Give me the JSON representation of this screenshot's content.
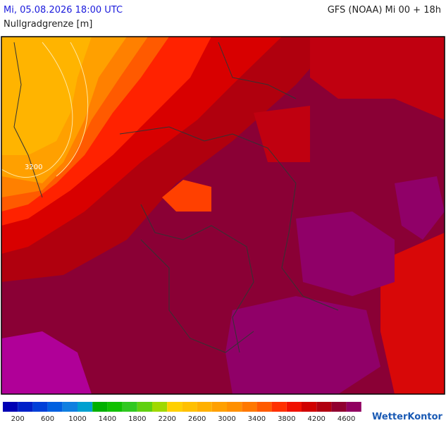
{
  "header": {
    "date": "Mi, 05.08.2026 18:00 UTC",
    "model": "GFS (NOAA) Mi 00 + 18h",
    "subtitle": "Nullgradgrenze [m]"
  },
  "map": {
    "contour_label": "3200"
  },
  "legend": {
    "colors": [
      "#0000b4",
      "#0020c8",
      "#0040d8",
      "#0060e0",
      "#1080e0",
      "#00a0d0",
      "#00b000",
      "#10c000",
      "#30c820",
      "#60d010",
      "#a0d800",
      "#ffd000",
      "#ffc000",
      "#ffb000",
      "#ffa000",
      "#ff9000",
      "#ff7800",
      "#ff5a00",
      "#ff3000",
      "#f01000",
      "#d00000",
      "#b00010",
      "#900030",
      "#900060",
      "#b000a0"
    ],
    "labels": [
      200,
      600,
      1000,
      1400,
      1800,
      2200,
      2600,
      3000,
      3400,
      3800,
      4200,
      4600
    ]
  },
  "logo": "WetterKontor"
}
